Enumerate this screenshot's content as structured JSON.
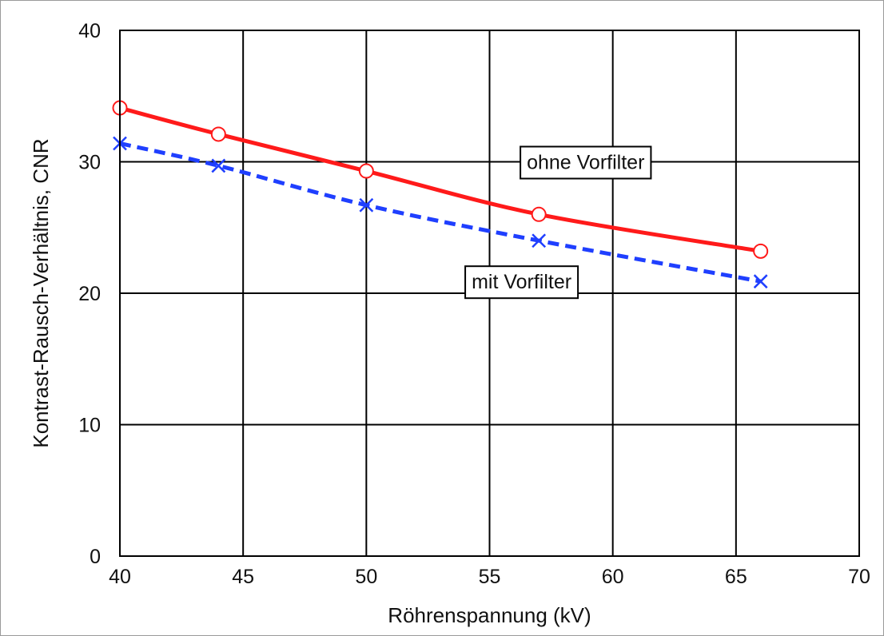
{
  "chart_data": {
    "type": "line",
    "xlabel": "Röhrenspannung (kV)",
    "ylabel": "Kontrast-Rausch-Verhältnis, CNR",
    "xlim": [
      40,
      70
    ],
    "ylim": [
      0,
      40
    ],
    "xticks": [
      40,
      45,
      50,
      55,
      60,
      65,
      70
    ],
    "yticks": [
      0,
      10,
      20,
      30,
      40
    ],
    "grid": true,
    "series": [
      {
        "name": "ohne Vorfilter",
        "x": [
          40,
          44,
          50,
          57,
          66
        ],
        "y": [
          34.1,
          32.1,
          29.3,
          26.0,
          23.2
        ],
        "color": "#ff1a1a",
        "line_style": "solid",
        "marker": "circle"
      },
      {
        "name": "mit Vorfilter",
        "x": [
          40,
          44,
          50,
          57,
          66
        ],
        "y": [
          31.4,
          29.7,
          26.7,
          24.0,
          20.9
        ],
        "color": "#1f3fff",
        "line_style": "dashed",
        "marker": "x"
      }
    ],
    "annotations": [
      {
        "text": "ohne Vorfilter",
        "x": 58.9,
        "y": 30.0
      },
      {
        "text": "mit Vorfilter",
        "x": 56.3,
        "y": 20.9
      }
    ]
  }
}
